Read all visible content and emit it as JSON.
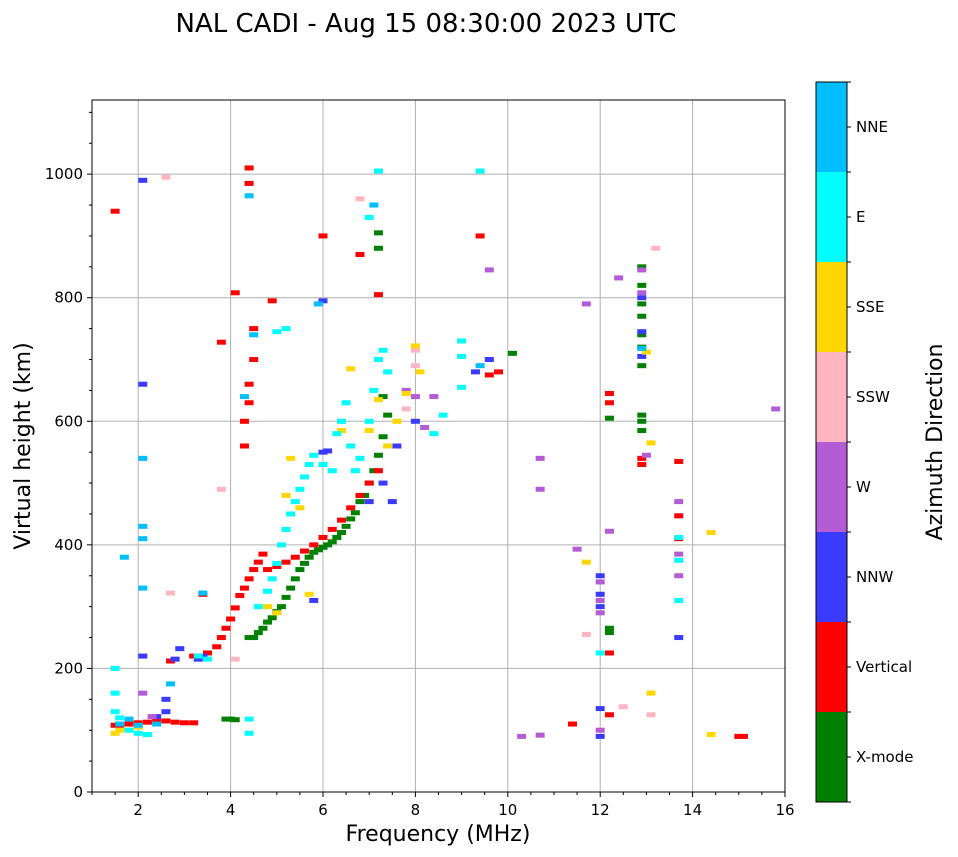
{
  "chart_data": {
    "type": "scatter",
    "title": "NAL CADI - Aug 15 08:30:00 2023 UTC",
    "xlabel": "Frequency (MHz)",
    "ylabel": "Virtual height (km)",
    "xlim": [
      1,
      16
    ],
    "ylim": [
      0,
      1120
    ],
    "xticks": [
      2,
      4,
      6,
      8,
      10,
      12,
      14,
      16
    ],
    "yticks": [
      0,
      200,
      400,
      600,
      800,
      1000
    ],
    "grid": true,
    "colorbar": {
      "label": "Azimuth Direction",
      "categories": [
        "X-mode",
        "Vertical",
        "NNW",
        "W",
        "SSW",
        "SSE",
        "E",
        "NNE"
      ],
      "colors": {
        "X-mode": "#008000",
        "Vertical": "#ff0000",
        "NNW": "#3b3bff",
        "W": "#b35cd6",
        "SSW": "#ffb6c1",
        "SSE": "#ffd700",
        "E": "#00ffff",
        "NNE": "#00bfff"
      }
    },
    "series": [
      {
        "name": "X-mode",
        "points": [
          [
            4.0,
            118
          ],
          [
            3.9,
            118
          ],
          [
            4.1,
            117
          ],
          [
            4.4,
            250
          ],
          [
            4.5,
            250
          ],
          [
            4.6,
            258
          ],
          [
            4.7,
            265
          ],
          [
            4.8,
            275
          ],
          [
            4.9,
            282
          ],
          [
            5.0,
            292
          ],
          [
            5.1,
            300
          ],
          [
            5.2,
            315
          ],
          [
            5.3,
            330
          ],
          [
            5.4,
            345
          ],
          [
            5.5,
            360
          ],
          [
            5.6,
            370
          ],
          [
            5.7,
            380
          ],
          [
            5.8,
            388
          ],
          [
            5.9,
            392
          ],
          [
            6.0,
            396
          ],
          [
            6.1,
            400
          ],
          [
            6.2,
            405
          ],
          [
            6.3,
            412
          ],
          [
            6.4,
            420
          ],
          [
            6.5,
            430
          ],
          [
            6.6,
            442
          ],
          [
            6.7,
            452
          ],
          [
            6.8,
            470
          ],
          [
            6.9,
            480
          ],
          [
            7.0,
            500
          ],
          [
            7.1,
            520
          ],
          [
            7.2,
            545
          ],
          [
            7.3,
            575
          ],
          [
            7.4,
            610
          ],
          [
            7.3,
            640
          ],
          [
            12.2,
            605
          ],
          [
            12.2,
            265
          ],
          [
            12.2,
            258
          ],
          [
            12.9,
            850
          ],
          [
            12.9,
            820
          ],
          [
            12.9,
            790
          ],
          [
            12.9,
            770
          ],
          [
            12.9,
            740
          ],
          [
            12.9,
            720
          ],
          [
            12.9,
            690
          ],
          [
            12.9,
            610
          ],
          [
            12.9,
            600
          ],
          [
            12.9,
            585
          ],
          [
            10.1,
            710
          ],
          [
            7.2,
            880
          ],
          [
            7.2,
            905
          ]
        ]
      },
      {
        "name": "Vertical",
        "points": [
          [
            1.6,
            108
          ],
          [
            1.8,
            110
          ],
          [
            2.0,
            112
          ],
          [
            2.2,
            113
          ],
          [
            2.4,
            114
          ],
          [
            2.6,
            115
          ],
          [
            2.8,
            113
          ],
          [
            3.0,
            112
          ],
          [
            3.2,
            112
          ],
          [
            2.7,
            212
          ],
          [
            3.2,
            220
          ],
          [
            3.5,
            225
          ],
          [
            3.7,
            235
          ],
          [
            3.8,
            250
          ],
          [
            3.9,
            265
          ],
          [
            4.0,
            280
          ],
          [
            4.1,
            298
          ],
          [
            4.2,
            318
          ],
          [
            4.3,
            330
          ],
          [
            4.4,
            345
          ],
          [
            4.5,
            360
          ],
          [
            4.6,
            372
          ],
          [
            4.7,
            385
          ],
          [
            4.8,
            360
          ],
          [
            5.0,
            365
          ],
          [
            5.2,
            372
          ],
          [
            5.4,
            380
          ],
          [
            5.6,
            390
          ],
          [
            5.8,
            400
          ],
          [
            6.0,
            412
          ],
          [
            6.2,
            425
          ],
          [
            6.4,
            440
          ],
          [
            6.6,
            460
          ],
          [
            6.8,
            480
          ],
          [
            7.0,
            500
          ],
          [
            7.2,
            520
          ],
          [
            4.3,
            560
          ],
          [
            4.3,
            600
          ],
          [
            4.4,
            630
          ],
          [
            4.4,
            660
          ],
          [
            4.5,
            700
          ],
          [
            4.5,
            750
          ],
          [
            4.4,
            985
          ],
          [
            4.4,
            1010
          ],
          [
            4.1,
            808
          ],
          [
            3.8,
            728
          ],
          [
            4.9,
            795
          ],
          [
            6.0,
            900
          ],
          [
            6.8,
            870
          ],
          [
            7.2,
            805
          ],
          [
            9.4,
            900
          ],
          [
            9.6,
            675
          ],
          [
            9.8,
            680
          ],
          [
            12.2,
            645
          ],
          [
            12.2,
            630
          ],
          [
            12.2,
            225
          ],
          [
            12.2,
            125
          ],
          [
            12.9,
            540
          ],
          [
            12.9,
            530
          ],
          [
            13.7,
            535
          ],
          [
            13.7,
            447
          ],
          [
            13.7,
            410
          ],
          [
            11.4,
            110
          ],
          [
            15.0,
            90
          ],
          [
            15.1,
            90
          ],
          [
            1.5,
            940
          ],
          [
            1.5,
            108
          ],
          [
            3.4,
            320
          ]
        ]
      },
      {
        "name": "NNW",
        "points": [
          [
            2.1,
            220
          ],
          [
            2.4,
            122
          ],
          [
            2.6,
            130
          ],
          [
            2.6,
            150
          ],
          [
            2.8,
            215
          ],
          [
            2.9,
            232
          ],
          [
            3.3,
            215
          ],
          [
            3.4,
            220
          ],
          [
            5.8,
            310
          ],
          [
            6.0,
            550
          ],
          [
            6.1,
            552
          ],
          [
            7.0,
            470
          ],
          [
            7.3,
            500
          ],
          [
            7.5,
            470
          ],
          [
            7.6,
            560
          ],
          [
            8.0,
            600
          ],
          [
            12.0,
            350
          ],
          [
            12.0,
            320
          ],
          [
            12.0,
            300
          ],
          [
            12.0,
            135
          ],
          [
            12.0,
            90
          ],
          [
            12.9,
            800
          ],
          [
            12.9,
            745
          ],
          [
            12.9,
            705
          ],
          [
            13.7,
            250
          ],
          [
            9.3,
            680
          ],
          [
            9.6,
            700
          ],
          [
            2.1,
            990
          ],
          [
            2.1,
            660
          ],
          [
            6.0,
            795
          ]
        ]
      },
      {
        "name": "W",
        "points": [
          [
            12.0,
            340
          ],
          [
            12.0,
            310
          ],
          [
            12.0,
            290
          ],
          [
            12.0,
            100
          ],
          [
            12.2,
            422
          ],
          [
            12.4,
            832
          ],
          [
            12.9,
            845
          ],
          [
            12.9,
            808
          ],
          [
            13.0,
            545
          ],
          [
            13.7,
            470
          ],
          [
            13.7,
            385
          ],
          [
            13.7,
            350
          ],
          [
            10.7,
            540
          ],
          [
            10.7,
            490
          ],
          [
            10.3,
            90
          ],
          [
            10.7,
            92
          ],
          [
            11.5,
            393
          ],
          [
            11.7,
            790
          ],
          [
            8.0,
            640
          ],
          [
            8.2,
            590
          ],
          [
            8.4,
            640
          ],
          [
            9.6,
            845
          ],
          [
            7.8,
            650
          ],
          [
            15.8,
            620
          ],
          [
            2.1,
            160
          ],
          [
            2.3,
            122
          ]
        ]
      },
      {
        "name": "SSW",
        "points": [
          [
            11.7,
            255
          ],
          [
            12.5,
            138
          ],
          [
            13.1,
            125
          ],
          [
            13.2,
            880
          ],
          [
            8.0,
            690
          ],
          [
            8.0,
            715
          ],
          [
            6.8,
            960
          ],
          [
            2.7,
            322
          ],
          [
            2.6,
            995
          ],
          [
            4.1,
            215
          ],
          [
            3.8,
            490
          ],
          [
            7.8,
            620
          ]
        ]
      },
      {
        "name": "SSE",
        "points": [
          [
            1.5,
            95
          ],
          [
            1.6,
            100
          ],
          [
            2.0,
            105
          ],
          [
            4.8,
            300
          ],
          [
            5.0,
            290
          ],
          [
            5.2,
            480
          ],
          [
            5.3,
            540
          ],
          [
            5.5,
            460
          ],
          [
            5.7,
            320
          ],
          [
            6.4,
            585
          ],
          [
            6.6,
            685
          ],
          [
            7.0,
            585
          ],
          [
            7.2,
            635
          ],
          [
            7.4,
            560
          ],
          [
            7.6,
            600
          ],
          [
            7.8,
            645
          ],
          [
            8.0,
            722
          ],
          [
            8.1,
            680
          ],
          [
            13.0,
            712
          ],
          [
            13.1,
            565
          ],
          [
            13.1,
            160
          ],
          [
            14.4,
            420
          ],
          [
            14.4,
            93
          ],
          [
            11.7,
            372
          ]
        ]
      },
      {
        "name": "E",
        "points": [
          [
            1.5,
            200
          ],
          [
            1.5,
            160
          ],
          [
            1.5,
            130
          ],
          [
            1.6,
            120
          ],
          [
            1.8,
            100
          ],
          [
            2.0,
            95
          ],
          [
            2.2,
            93
          ],
          [
            3.3,
            220
          ],
          [
            3.5,
            215
          ],
          [
            4.4,
            118
          ],
          [
            4.4,
            95
          ],
          [
            4.6,
            300
          ],
          [
            4.8,
            325
          ],
          [
            4.9,
            345
          ],
          [
            5.0,
            370
          ],
          [
            5.1,
            400
          ],
          [
            5.2,
            425
          ],
          [
            5.3,
            450
          ],
          [
            5.4,
            470
          ],
          [
            5.5,
            490
          ],
          [
            5.6,
            510
          ],
          [
            5.7,
            530
          ],
          [
            5.8,
            545
          ],
          [
            6.0,
            530
          ],
          [
            6.2,
            520
          ],
          [
            6.3,
            580
          ],
          [
            6.4,
            600
          ],
          [
            6.5,
            630
          ],
          [
            6.6,
            560
          ],
          [
            6.7,
            520
          ],
          [
            6.8,
            540
          ],
          [
            7.0,
            600
          ],
          [
            7.1,
            650
          ],
          [
            7.2,
            700
          ],
          [
            7.3,
            715
          ],
          [
            7.4,
            680
          ],
          [
            9.0,
            730
          ],
          [
            9.0,
            705
          ],
          [
            9.0,
            655
          ],
          [
            9.4,
            1005
          ],
          [
            12.0,
            225
          ],
          [
            13.7,
            412
          ],
          [
            13.7,
            375
          ],
          [
            13.7,
            310
          ],
          [
            5.0,
            745
          ],
          [
            5.2,
            750
          ],
          [
            7.0,
            930
          ],
          [
            7.2,
            1005
          ],
          [
            8.4,
            580
          ],
          [
            8.6,
            610
          ]
        ]
      },
      {
        "name": "NNE",
        "points": [
          [
            1.6,
            110
          ],
          [
            1.8,
            118
          ],
          [
            2.0,
            108
          ],
          [
            2.4,
            110
          ],
          [
            2.7,
            175
          ],
          [
            3.4,
            322
          ],
          [
            4.4,
            965
          ],
          [
            7.1,
            950
          ],
          [
            5.9,
            790
          ],
          [
            1.7,
            380
          ],
          [
            2.1,
            540
          ],
          [
            2.1,
            430
          ],
          [
            2.1,
            410
          ],
          [
            2.1,
            330
          ],
          [
            4.3,
            640
          ],
          [
            4.5,
            740
          ],
          [
            9.4,
            690
          ],
          [
            12.9,
            718
          ]
        ]
      }
    ]
  }
}
